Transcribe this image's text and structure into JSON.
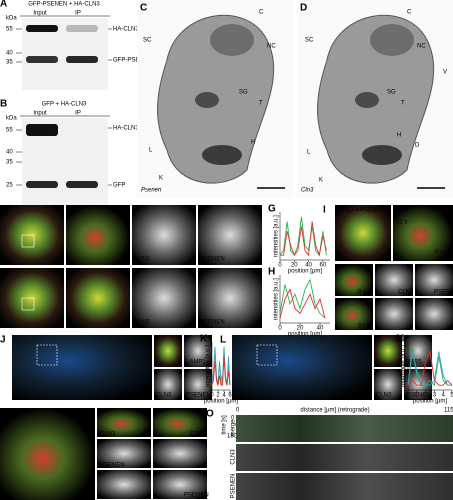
{
  "panel_A": {
    "letter": "A",
    "title": "GFP-PSENEN + HA-CLN3",
    "lanes": [
      "Input",
      "IP"
    ],
    "unit": "kDa",
    "markers": [
      55,
      40,
      35
    ],
    "bands": [
      "HA-CLN3",
      "GFP-PSENEN"
    ]
  },
  "panel_B": {
    "letter": "B",
    "title": "GFP + HA-CLN3",
    "lanes": [
      "Input",
      "IP"
    ],
    "unit": "kDa",
    "markers": [
      55,
      40,
      35,
      25
    ],
    "bands": [
      "HA-CLN3",
      "GFP"
    ]
  },
  "panel_C": {
    "letter": "C",
    "labels": [
      "C",
      "NC",
      "SC",
      "SG",
      "T",
      "H",
      "L",
      "K"
    ],
    "caption": "Psenen"
  },
  "panel_D": {
    "letter": "D",
    "labels": [
      "C",
      "NC",
      "SC",
      "SG",
      "T",
      "V",
      "H",
      "L",
      "D",
      "K"
    ],
    "caption": "Cln3"
  },
  "panel_E": {
    "letter": "E",
    "channels": [
      "CLN3",
      "PSENEN"
    ]
  },
  "panel_F": {
    "letter": "F",
    "channels": [
      "CLN3",
      "PSENEN"
    ]
  },
  "panel_I": {
    "letter": "I",
    "title": [
      "CLN3",
      "+",
      "PSENEN"
    ],
    "times": [
      "32 s",
      "0 s",
      "0 s",
      "32 s"
    ],
    "channels": [
      "CLN3",
      "PSENEN"
    ]
  },
  "panel_J": {
    "letter": "J",
    "channels": [
      "CLN3",
      "LAMP1",
      "PSENEN"
    ]
  },
  "panel_L": {
    "letter": "L",
    "channels": [
      "CLN3",
      "RAB5",
      "PSENEN"
    ]
  },
  "panel_N": {
    "letter": "N",
    "channels": [
      "CLN3",
      "PSENEN"
    ]
  },
  "panel_O": {
    "letter": "O",
    "xlabel": "distance [µm] (retrograde)",
    "xticks": [
      0,
      115
    ],
    "ylabel": "time [s]",
    "yticks": [
      0,
      180
    ],
    "rows": [
      "merge",
      "CLN3",
      "PSENEN"
    ]
  },
  "chart_data": [
    {
      "type": "line",
      "panel": "G",
      "ylabel": "intensities [a.u.]",
      "xlabel": "position [µm]",
      "xlim": [
        0,
        70
      ],
      "ylim": [
        0,
        10
      ],
      "xticks": [
        0,
        20,
        40,
        60
      ],
      "x": [
        0,
        5,
        10,
        15,
        20,
        25,
        30,
        35,
        40,
        45,
        50,
        55,
        60,
        65
      ],
      "series": [
        {
          "color": "#2db34a",
          "values": [
            1,
            2,
            8,
            2,
            1,
            3,
            9,
            3,
            2,
            7,
            2,
            1,
            6,
            1
          ]
        },
        {
          "color": "#e0312f",
          "values": [
            1,
            1,
            6,
            3,
            1,
            2,
            7,
            2,
            1,
            8,
            3,
            1,
            5,
            2
          ]
        }
      ]
    },
    {
      "type": "line",
      "panel": "H",
      "ylabel": "intensities [a.u.]",
      "xlabel": "position [µm]",
      "xlim": [
        0,
        50
      ],
      "ylim": [
        0,
        10
      ],
      "xticks": [
        0,
        20,
        40
      ],
      "x": [
        0,
        5,
        10,
        15,
        20,
        25,
        30,
        35,
        40,
        45
      ],
      "series": [
        {
          "color": "#2db34a",
          "values": [
            2,
            8,
            4,
            6,
            3,
            7,
            9,
            4,
            2,
            1
          ]
        },
        {
          "color": "#e0312f",
          "values": [
            1,
            5,
            7,
            3,
            2,
            4,
            6,
            3,
            5,
            1
          ]
        }
      ]
    },
    {
      "type": "line",
      "panel": "K",
      "ylabel": "intensities [a.u.]",
      "xlabel": "position [µm]",
      "xlim": [
        0,
        6
      ],
      "ylim": [
        0,
        10
      ],
      "xticks": [
        0,
        2,
        4,
        6
      ],
      "x": [
        0,
        0.5,
        1,
        1.5,
        2,
        2.5,
        3,
        3.5,
        4,
        4.5,
        5,
        5.5,
        6
      ],
      "series": [
        {
          "color": "#2db34a",
          "values": [
            1,
            3,
            8,
            2,
            1,
            6,
            2,
            1,
            9,
            3,
            1,
            5,
            1
          ]
        },
        {
          "color": "#3aa0d8",
          "values": [
            1,
            4,
            9,
            3,
            1,
            5,
            3,
            2,
            8,
            2,
            1,
            7,
            1
          ]
        },
        {
          "color": "#e0312f",
          "values": [
            1,
            2,
            6,
            2,
            1,
            3,
            1,
            1,
            7,
            2,
            1,
            4,
            1
          ]
        }
      ]
    },
    {
      "type": "line",
      "panel": "M",
      "ylabel": "intensities [a.u.]",
      "xlabel": "position [µm]",
      "xlim": [
        0,
        5
      ],
      "ylim": [
        0,
        10
      ],
      "xticks": [
        0,
        1,
        2,
        3,
        4,
        5
      ],
      "x": [
        0,
        0.5,
        1,
        1.5,
        2,
        2.5,
        3,
        3.5,
        4,
        4.5,
        5
      ],
      "series": [
        {
          "color": "#2db34a",
          "values": [
            1,
            9,
            3,
            1,
            1,
            2,
            1,
            7,
            2,
            1,
            1
          ]
        },
        {
          "color": "#3aa0d8",
          "values": [
            1,
            8,
            4,
            1,
            1,
            1,
            2,
            8,
            3,
            1,
            1
          ]
        },
        {
          "color": "#e0312f",
          "values": [
            1,
            2,
            1,
            1,
            6,
            8,
            2,
            1,
            1,
            2,
            1
          ]
        }
      ]
    }
  ]
}
